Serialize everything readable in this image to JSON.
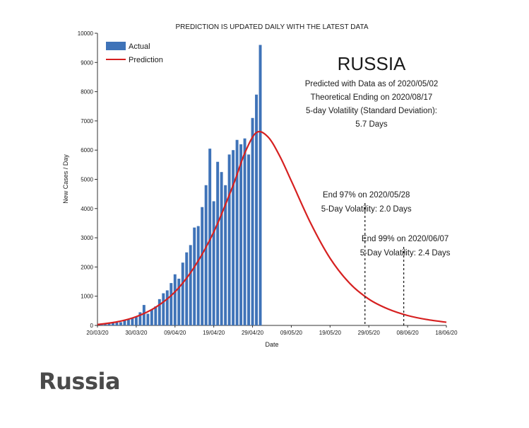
{
  "page": {
    "heading": "Russia"
  },
  "colors": {
    "bar": "#3f73b8",
    "prediction": "#d62020",
    "text": "#1a1a1a",
    "axis": "#333333"
  },
  "chart_data": {
    "type": "bar",
    "title": "RUSSIA",
    "top_note": "PREDICTION IS UPDATED DAILY WITH THE LATEST DATA",
    "info_lines": [
      "Predicted with Data as of 2020/05/02",
      "Theoretical Ending on 2020/08/17",
      "5-day Volatility (Standard Deviation):",
      "5.7 Days"
    ],
    "xlabel": "Date",
    "ylabel": "New Cases / Day",
    "xlim": [
      "2020-03-20",
      "2020-06-18"
    ],
    "ylim": [
      0,
      10000
    ],
    "yticks": [
      0,
      1000,
      2000,
      3000,
      4000,
      5000,
      6000,
      7000,
      8000,
      9000,
      10000
    ],
    "xticks": [
      "20/03/20",
      "30/03/20",
      "09/04/20",
      "19/04/20",
      "29/04/20",
      "09/05/20",
      "19/05/20",
      "29/05/20",
      "08/06/20",
      "18/06/20"
    ],
    "legend": {
      "position": "top-left",
      "items": [
        "Actual",
        "Prediction"
      ]
    },
    "series": [
      {
        "name": "Actual",
        "type": "bar",
        "start_date": "2020-03-21",
        "values": [
          50,
          60,
          70,
          80,
          100,
          110,
          180,
          200,
          250,
          300,
          450,
          700,
          400,
          550,
          650,
          900,
          1100,
          1200,
          1450,
          1750,
          1600,
          2150,
          2500,
          2750,
          3350,
          3400,
          4050,
          4800,
          6050,
          4250,
          5600,
          5250,
          4800,
          5850,
          6000,
          6350,
          6200,
          6400,
          5850,
          7100,
          7900,
          9600
        ]
      },
      {
        "name": "Prediction",
        "type": "line",
        "peak_date": "2020-04-30",
        "peak_value": 6600,
        "points": [
          [
            "2020-03-20",
            30
          ],
          [
            "2020-03-25",
            120
          ],
          [
            "2020-03-30",
            300
          ],
          [
            "2020-04-04",
            620
          ],
          [
            "2020-04-09",
            1150
          ],
          [
            "2020-04-14",
            2000
          ],
          [
            "2020-04-19",
            3200
          ],
          [
            "2020-04-24",
            4800
          ],
          [
            "2020-04-27",
            5900
          ],
          [
            "2020-04-30",
            6600
          ],
          [
            "2020-05-03",
            6450
          ],
          [
            "2020-05-06",
            5800
          ],
          [
            "2020-05-09",
            4950
          ],
          [
            "2020-05-14",
            3500
          ],
          [
            "2020-05-19",
            2300
          ],
          [
            "2020-05-24",
            1450
          ],
          [
            "2020-05-29",
            900
          ],
          [
            "2020-06-03",
            560
          ],
          [
            "2020-06-08",
            340
          ],
          [
            "2020-06-13",
            200
          ],
          [
            "2020-06-18",
            110
          ]
        ]
      }
    ],
    "annotations": [
      {
        "date": "2020-05-28",
        "lines": [
          "End 97% on 2020/05/28",
          "5-Day Volatility: 2.0 Days"
        ],
        "style": "dashed-vertical"
      },
      {
        "date": "2020-06-07",
        "lines": [
          "End 99% on 2020/06/07",
          "5-Day Volatility: 2.4 Days"
        ],
        "style": "dashed-vertical"
      }
    ]
  }
}
